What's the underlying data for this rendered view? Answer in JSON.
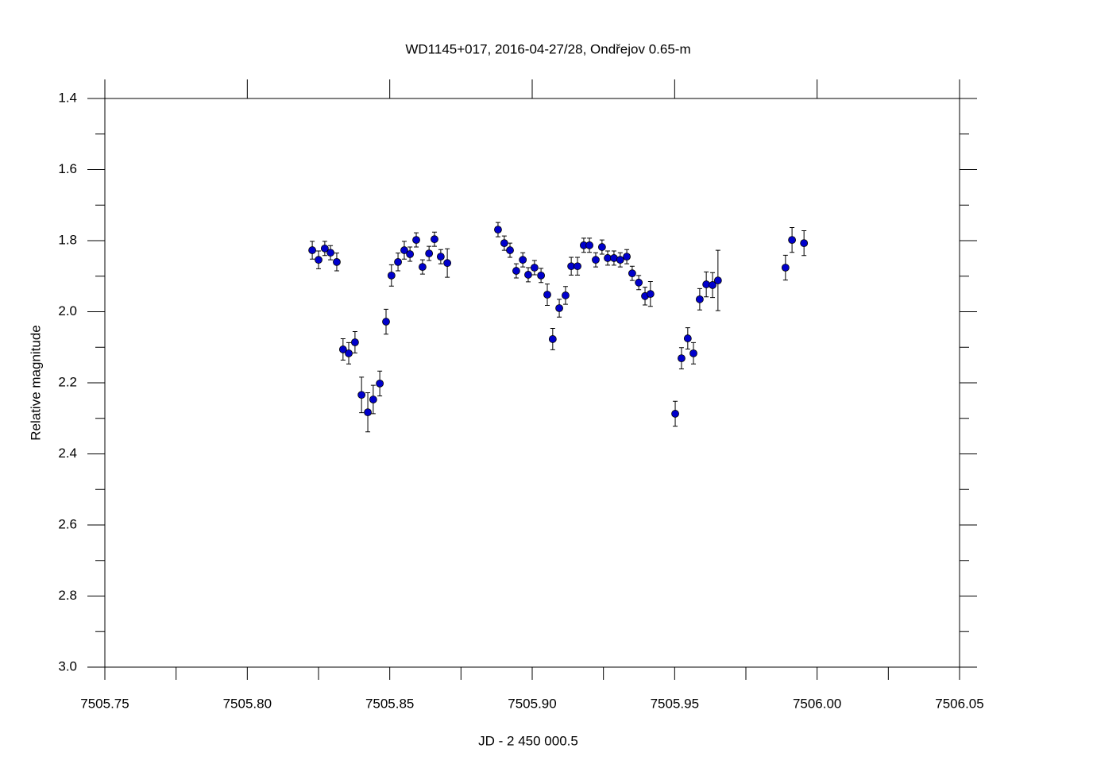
{
  "chart_data": {
    "type": "scatter",
    "title": "WD1145+017, 2016-04-27/28, Ondřejov 0.65-m",
    "xlabel": "JD - 2 450 000.5",
    "ylabel": "Relative magnitude",
    "color": "#0000cc",
    "yreverse": true,
    "xlim": [
      7505.75,
      7506.05
    ],
    "ylim": [
      1.4,
      3.0
    ],
    "xticks": [
      7505.75,
      {
        "value": 7505.8,
        "label": "7505.80"
      },
      7505.85,
      {
        "value": 7505.9,
        "label": "7505.90"
      },
      7505.95,
      {
        "value": 7506.0,
        "label": "7506.00"
      },
      7506.05
    ],
    "yticks": [
      1.4,
      1.6,
      1.8,
      {
        "value": 2.0,
        "label": "2.0"
      },
      2.2,
      2.4,
      2.6,
      2.8,
      {
        "value": 3.0,
        "label": "3.0"
      }
    ],
    "xminorticks": [
      7505.775,
      7505.825,
      7505.875,
      7505.925,
      7505.975,
      7506.025
    ],
    "yminorticks": [
      1.5,
      1.7,
      1.9,
      2.1,
      2.3,
      2.5,
      2.7,
      2.9
    ],
    "x": [
      7505.8228,
      7505.825,
      7505.8272,
      7505.8292,
      7505.8314,
      7505.8336,
      7505.8356,
      7505.8378,
      7505.8401,
      7505.8423,
      7505.8442,
      7505.8465,
      7505.8487,
      7505.8506,
      7505.8529,
      7505.8551,
      7505.8571,
      7505.8593,
      7505.8615,
      7505.8638,
      7505.8657,
      7505.8679,
      7505.8702,
      7505.888,
      7505.8902,
      7505.8922,
      7505.8944,
      7505.8967,
      7505.8986,
      7505.9008,
      7505.9031,
      7505.9053,
      7505.9072,
      7505.9095,
      7505.9117,
      7505.9137,
      7505.9159,
      7505.9181,
      7505.9201,
      7505.9223,
      7505.9245,
      7505.9265,
      7505.9287,
      7505.9309,
      7505.9332,
      7505.9351,
      7505.9374,
      7505.9396,
      7505.9415,
      7505.9502,
      7505.9524,
      7505.9546,
      7505.9566,
      7505.9588,
      7505.9611,
      7505.9633,
      7505.9652,
      7505.9889,
      7505.9912,
      7505.9954
    ],
    "values": [
      1.827,
      1.854,
      1.822,
      1.834,
      1.86,
      2.106,
      2.117,
      2.086,
      2.234,
      2.283,
      2.247,
      2.202,
      2.028,
      1.898,
      1.86,
      1.827,
      1.838,
      1.798,
      1.874,
      1.836,
      1.796,
      1.845,
      1.863,
      1.769,
      1.807,
      1.827,
      1.885,
      1.854,
      1.896,
      1.876,
      1.898,
      1.952,
      2.077,
      1.99,
      1.954,
      1.872,
      1.872,
      1.813,
      1.813,
      1.854,
      1.818,
      1.849,
      1.849,
      1.854,
      1.845,
      1.892,
      1.918,
      1.956,
      1.95,
      2.287,
      2.131,
      2.075,
      2.117,
      1.965,
      1.923,
      1.925,
      1.912,
      1.876,
      1.798,
      1.807
    ],
    "errors": [
      0.025,
      0.025,
      0.02,
      0.02,
      0.025,
      0.03,
      0.03,
      0.03,
      0.05,
      0.055,
      0.04,
      0.035,
      0.035,
      0.03,
      0.025,
      0.025,
      0.02,
      0.02,
      0.02,
      0.02,
      0.02,
      0.02,
      0.04,
      0.02,
      0.02,
      0.02,
      0.02,
      0.02,
      0.02,
      0.02,
      0.02,
      0.03,
      0.03,
      0.025,
      0.025,
      0.025,
      0.025,
      0.02,
      0.02,
      0.02,
      0.02,
      0.02,
      0.02,
      0.02,
      0.02,
      0.02,
      0.02,
      0.025,
      0.035,
      0.035,
      0.03,
      0.03,
      0.03,
      0.03,
      0.035,
      0.035,
      0.085,
      0.035,
      0.035,
      0.035
    ]
  }
}
